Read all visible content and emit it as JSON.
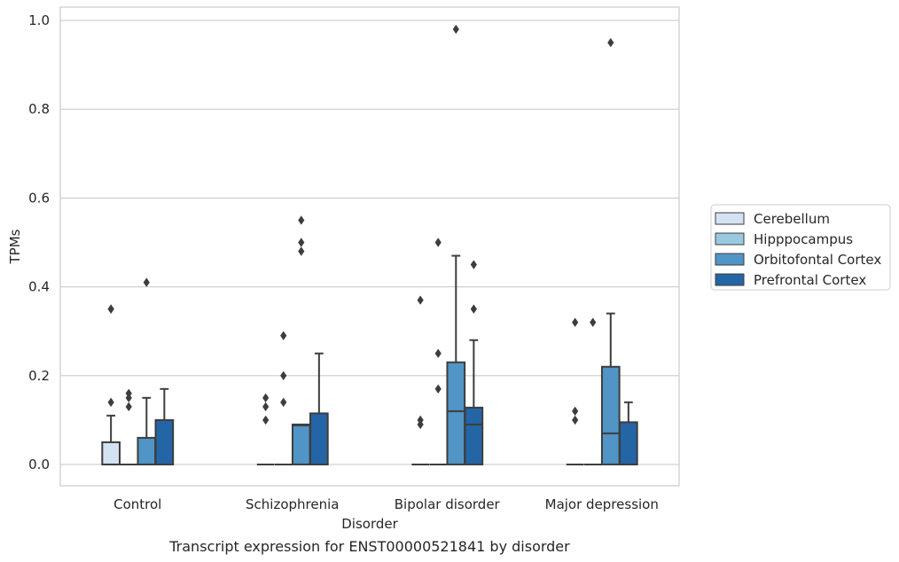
{
  "chart_data": {
    "type": "box",
    "caption": "Transcript expression for ENST00000521841 by disorder",
    "xlabel": "Disorder",
    "ylabel": "TPMs",
    "ylim": [
      -0.048,
      1.03
    ],
    "yticks": [
      "0.0",
      "0.2",
      "0.4",
      "0.6",
      "0.8",
      "1.0"
    ],
    "grid": "horizontal",
    "legend_position": "right",
    "categories": [
      "Control",
      "Schizophrenia",
      "Bipolar disorder",
      "Major depression"
    ],
    "series": [
      {
        "name": "Cerebellum",
        "color": "#d3e3f3",
        "boxes": [
          {
            "q1": 0.0,
            "median": 0.0,
            "q3": 0.05,
            "whisker_low": 0.0,
            "whisker_high": 0.11,
            "outliers": [
              0.14,
              0.35
            ]
          },
          {
            "q1": 0.0,
            "median": 0.0,
            "q3": 0.0,
            "whisker_low": 0.0,
            "whisker_high": 0.0,
            "outliers": []
          },
          {
            "q1": 0.0,
            "median": 0.0,
            "q3": 0.0,
            "whisker_low": 0.0,
            "whisker_high": 0.0,
            "outliers": []
          },
          {
            "q1": 0.0,
            "median": 0.0,
            "q3": 0.0,
            "whisker_low": 0.0,
            "whisker_high": 0.0,
            "outliers": []
          }
        ]
      },
      {
        "name": "Hipppocampus",
        "color": "#9ac8e0",
        "boxes": [
          {
            "q1": 0.0,
            "median": 0.0,
            "q3": 0.0,
            "whisker_low": 0.0,
            "whisker_high": 0.0,
            "outliers": [
              0.13,
              0.15,
              0.16
            ]
          },
          {
            "q1": 0.0,
            "median": 0.0,
            "q3": 0.0,
            "whisker_low": 0.0,
            "whisker_high": 0.0,
            "outliers": [
              0.14,
              0.2,
              0.29
            ]
          },
          {
            "q1": 0.0,
            "median": 0.0,
            "q3": 0.0,
            "whisker_low": 0.0,
            "whisker_high": 0.0,
            "outliers": [
              0.17,
              0.25,
              0.5
            ]
          },
          {
            "q1": 0.0,
            "median": 0.0,
            "q3": 0.0,
            "whisker_low": 0.0,
            "whisker_high": 0.0,
            "outliers": [
              0.32
            ]
          }
        ]
      },
      {
        "name": "Orbitofontal Cortex",
        "color": "#5095c5",
        "boxes": [
          {
            "q1": 0.0,
            "median": 0.0,
            "q3": 0.06,
            "whisker_low": 0.0,
            "whisker_high": 0.15,
            "outliers": [
              0.41
            ]
          },
          {
            "q1": 0.0,
            "median": 0.088,
            "q3": 0.09,
            "whisker_low": 0.0,
            "whisker_high": 0.09,
            "outliers": [
              0.48,
              0.5,
              0.55
            ]
          },
          {
            "q1": 0.0,
            "median": 0.12,
            "q3": 0.23,
            "whisker_low": 0.0,
            "whisker_high": 0.47,
            "outliers": [
              0.98
            ]
          },
          {
            "q1": 0.0,
            "median": 0.07,
            "q3": 0.22,
            "whisker_low": 0.0,
            "whisker_high": 0.34,
            "outliers": [
              0.95
            ]
          }
        ]
      },
      {
        "name": "Prefrontal Cortex",
        "color": "#2465a6",
        "boxes": [
          {
            "q1": 0.0,
            "median": 0.0,
            "q3": 0.1,
            "whisker_low": 0.0,
            "whisker_high": 0.17,
            "outliers": []
          },
          {
            "q1": 0.0,
            "median": 0.0,
            "q3": 0.115,
            "whisker_low": 0.0,
            "whisker_high": 0.25,
            "outliers": []
          },
          {
            "q1": 0.0,
            "median": 0.09,
            "q3": 0.128,
            "whisker_low": 0.0,
            "whisker_high": 0.28,
            "outliers": [
              0.35,
              0.45
            ]
          },
          {
            "q1": 0.0,
            "median": 0.0,
            "q3": 0.095,
            "whisker_low": 0.0,
            "whisker_high": 0.14,
            "outliers": []
          }
        ]
      }
    ],
    "extra_outliers": [
      {
        "category": 0,
        "series": 0,
        "value": 0.35
      },
      {
        "category": 2,
        "series": 0,
        "value": 0.09
      },
      {
        "category": 2,
        "series": 0,
        "value": 0.1
      },
      {
        "category": 2,
        "series": 0,
        "value": 0.37
      },
      {
        "category": 3,
        "series": 0,
        "value": 0.1
      },
      {
        "category": 3,
        "series": 0,
        "value": 0.12
      },
      {
        "category": 3,
        "series": 0,
        "value": 0.32
      },
      {
        "category": 1,
        "series": 0,
        "value": 0.1
      },
      {
        "category": 1,
        "series": 0,
        "value": 0.13
      },
      {
        "category": 1,
        "series": 0,
        "value": 0.15
      }
    ]
  }
}
